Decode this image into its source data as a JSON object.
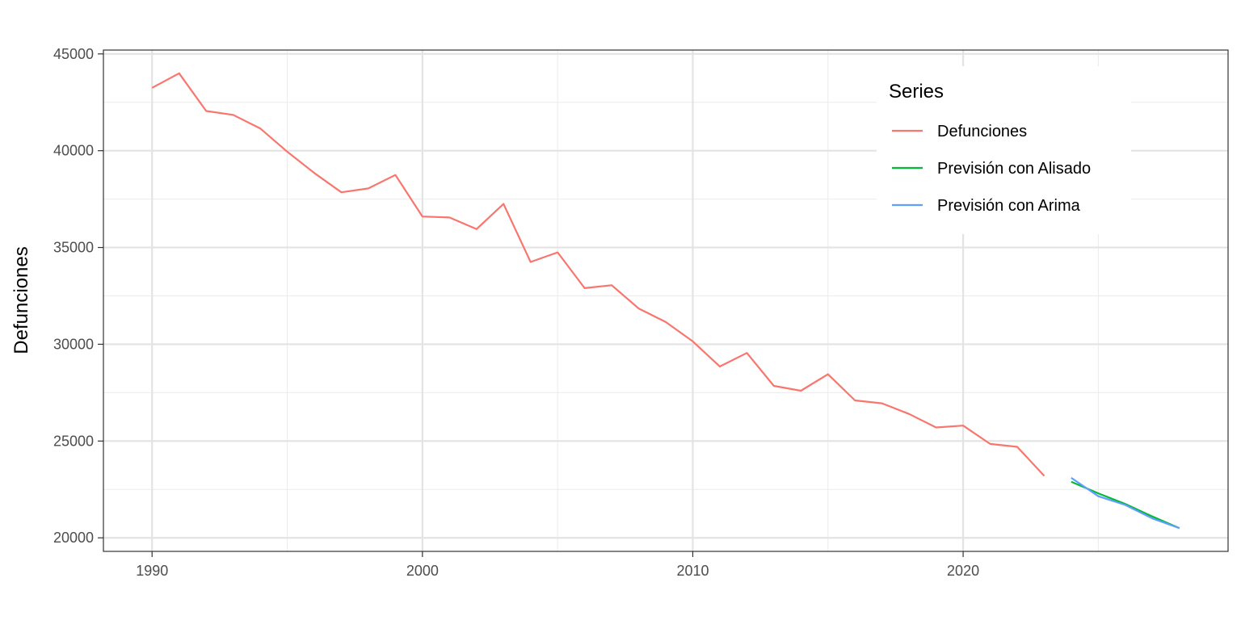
{
  "chart_data": {
    "type": "line",
    "title": "",
    "xlabel": "",
    "ylabel": "Defunciones",
    "xlim": [
      1988.2,
      2029.8
    ],
    "ylim": [
      19300,
      45200
    ],
    "x_ticks": [
      1990,
      2000,
      2010,
      2020
    ],
    "y_ticks": [
      20000,
      25000,
      30000,
      35000,
      40000,
      45000
    ],
    "grid": true,
    "legend": {
      "title": "Series",
      "position": "top-right"
    },
    "series": [
      {
        "name": "Defunciones",
        "color": "#F8766D",
        "x": [
          1990,
          1991,
          1992,
          1993,
          1994,
          1995,
          1996,
          1997,
          1998,
          1999,
          2000,
          2001,
          2002,
          2003,
          2004,
          2005,
          2006,
          2007,
          2008,
          2009,
          2010,
          2011,
          2012,
          2013,
          2014,
          2015,
          2016,
          2017,
          2018,
          2019,
          2020,
          2021,
          2022,
          2023
        ],
        "y": [
          43250,
          44000,
          42050,
          41850,
          41150,
          39950,
          38850,
          37850,
          38050,
          38750,
          36600,
          36550,
          35950,
          37250,
          34250,
          34750,
          32900,
          33050,
          31850,
          31150,
          30150,
          28850,
          29550,
          27850,
          27600,
          28450,
          27100,
          26950,
          26400,
          25700,
          25800,
          24850,
          24700,
          23200
        ]
      },
      {
        "name": "Previsión con Alisado",
        "color": "#00BA38",
        "x": [
          2024,
          2025,
          2026,
          2027,
          2028
        ],
        "y": [
          22900,
          22300,
          21750,
          21100,
          20500
        ]
      },
      {
        "name": "Previsión con Arima",
        "color": "#619CFF",
        "x": [
          2024,
          2025,
          2026,
          2027,
          2028
        ],
        "y": [
          23100,
          22150,
          21700,
          21000,
          20500
        ]
      }
    ]
  }
}
